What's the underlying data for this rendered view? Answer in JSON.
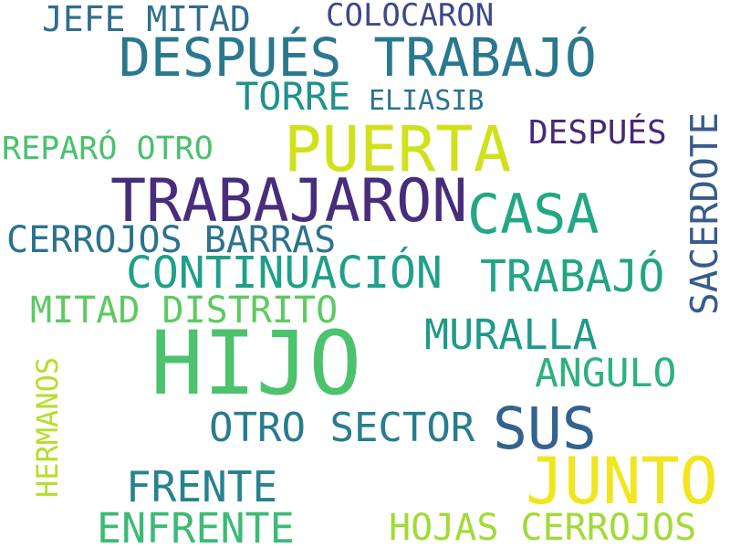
{
  "words": [
    {
      "text": "JEFE MITAD",
      "color": "#306d8e"
    },
    {
      "text": "COLOCARON",
      "color": "#3f4788"
    },
    {
      "text": "DESPUÉS TRABAJÓ",
      "color": "#2a788e"
    },
    {
      "text": "TORRE",
      "color": "#21918c"
    },
    {
      "text": "ELIASIB",
      "color": "#2c728e"
    },
    {
      "text": "PUERTA",
      "color": "#d0e11c"
    },
    {
      "text": "DESPUÉS",
      "color": "#482878"
    },
    {
      "text": "REPARÓ OTRO",
      "color": "#4ac16d"
    },
    {
      "text": "SACERDOTE",
      "color": "#365c8d"
    },
    {
      "text": "TRABAJARON",
      "color": "#472d7b"
    },
    {
      "text": "CASA",
      "color": "#22a884"
    },
    {
      "text": "CERROJOS BARRAS",
      "color": "#2c728e"
    },
    {
      "text": "CONTINUACIÓN",
      "color": "#1fa088"
    },
    {
      "text": "TRABAJÓ",
      "color": "#21a585"
    },
    {
      "text": "MITAD DISTRITO",
      "color": "#5ec962"
    },
    {
      "text": "MURALLA",
      "color": "#1f9a8a"
    },
    {
      "text": "HIJO",
      "color": "#4cc26c"
    },
    {
      "text": "ANGULO",
      "color": "#2db27d"
    },
    {
      "text": "HERMANOS",
      "color": "#b5de2b"
    },
    {
      "text": "OTRO SECTOR",
      "color": "#287c8e"
    },
    {
      "text": "SUS",
      "color": "#33638d"
    },
    {
      "text": "JUNTO",
      "color": "#f1e51d"
    },
    {
      "text": "FRENTE",
      "color": "#26828e"
    },
    {
      "text": "ENFRENTE",
      "color": "#3bbb75"
    },
    {
      "text": "HOJAS CERROJOS",
      "color": "#a2da37"
    }
  ]
}
